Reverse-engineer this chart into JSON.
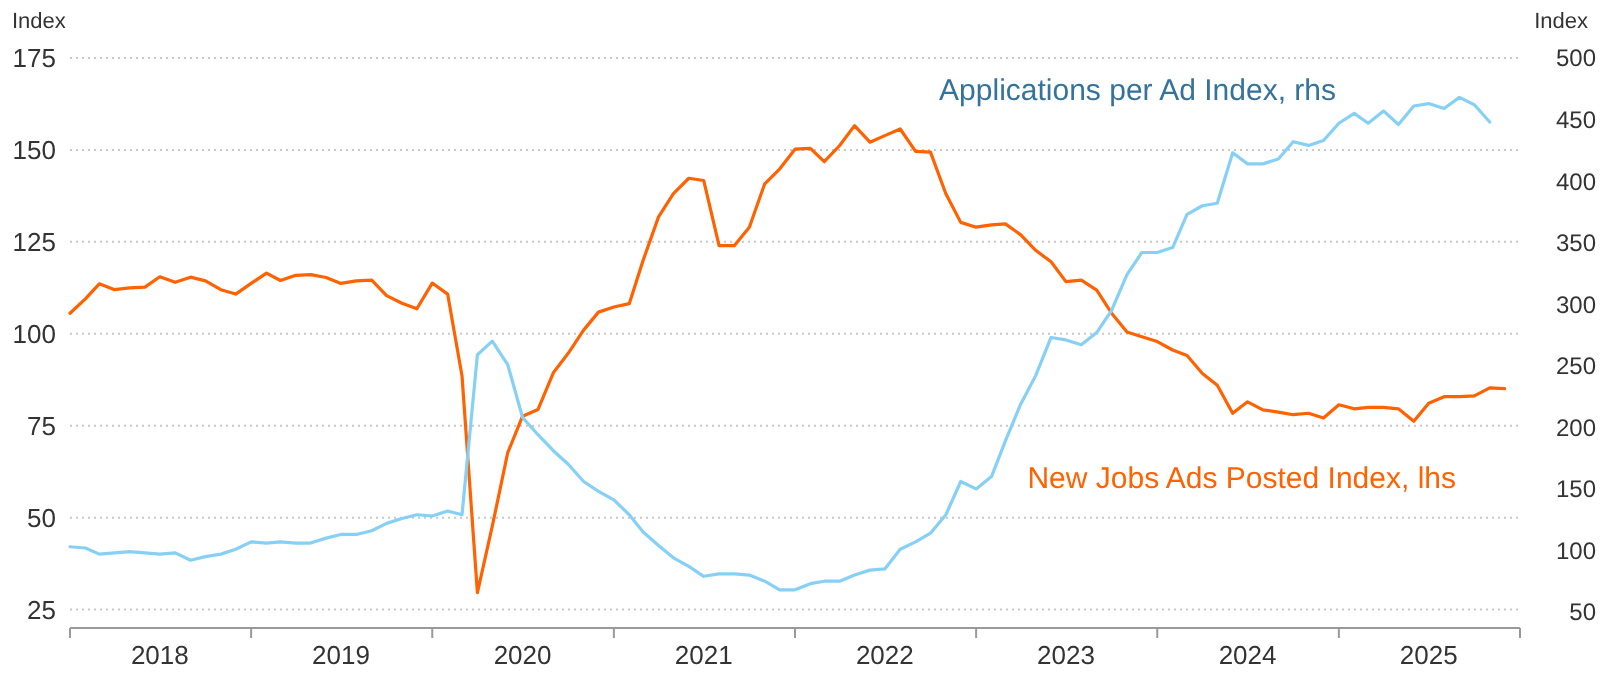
{
  "chart_data": {
    "type": "line",
    "ylabel": "Index",
    "y2label": "Index",
    "xlim": [
      "2018-01",
      "2026-01"
    ],
    "xticks": [
      {
        "value": "2018",
        "label": null
      },
      {
        "value": "2018-07",
        "label": "2018"
      },
      {
        "value": "2019",
        "label": null
      },
      {
        "value": "2019-07",
        "label": "2019"
      },
      {
        "value": "2020",
        "label": null
      },
      {
        "value": "2020-07",
        "label": "2020"
      },
      {
        "value": "2021",
        "label": null
      },
      {
        "value": "2021-07",
        "label": "2021"
      },
      {
        "value": "2022",
        "label": null
      },
      {
        "value": "2022-07",
        "label": "2022"
      },
      {
        "value": "2023",
        "label": null
      },
      {
        "value": "2023-07",
        "label": "2023"
      },
      {
        "value": "2024",
        "label": null
      },
      {
        "value": "2024-07",
        "label": "2024"
      },
      {
        "value": "2025",
        "label": null
      },
      {
        "value": "2025-07",
        "label": "2025"
      },
      {
        "value": "2026",
        "label": null
      }
    ],
    "ylim": [
      20,
      175
    ],
    "yticks": [
      25,
      50,
      75,
      100,
      125,
      150,
      175
    ],
    "y2lim": [
      37,
      500
    ],
    "y2ticks": [
      50,
      100,
      150,
      200,
      250,
      300,
      350,
      400,
      450,
      500
    ],
    "grid": "y",
    "x": [
      "2018-01",
      "2018-02",
      "2018-03",
      "2018-04",
      "2018-05",
      "2018-06",
      "2018-07",
      "2018-08",
      "2018-09",
      "2018-10",
      "2018-11",
      "2018-12",
      "2019-01",
      "2019-02",
      "2019-03",
      "2019-04",
      "2019-05",
      "2019-06",
      "2019-07",
      "2019-08",
      "2019-09",
      "2019-10",
      "2019-11",
      "2019-12",
      "2020-01",
      "2020-02",
      "2020-03",
      "2020-04",
      "2020-05",
      "2020-06",
      "2020-07",
      "2020-08",
      "2020-09",
      "2020-10",
      "2020-11",
      "2020-12",
      "2021-01",
      "2021-02",
      "2021-03",
      "2021-04",
      "2021-05",
      "2021-06",
      "2021-07",
      "2021-08",
      "2021-09",
      "2021-10",
      "2021-11",
      "2021-12",
      "2022-01",
      "2022-02",
      "2022-03",
      "2022-04",
      "2022-05",
      "2022-06",
      "2022-07",
      "2022-08",
      "2022-09",
      "2022-10",
      "2022-11",
      "2022-12",
      "2023-01",
      "2023-02",
      "2023-03",
      "2023-04",
      "2023-05",
      "2023-06",
      "2023-07",
      "2023-08",
      "2023-09",
      "2023-10",
      "2023-11",
      "2023-12",
      "2024-01",
      "2024-02",
      "2024-03",
      "2024-04",
      "2024-05",
      "2024-06",
      "2024-07",
      "2024-08",
      "2024-09",
      "2024-10",
      "2024-11",
      "2024-12",
      "2025-01",
      "2025-02",
      "2025-03",
      "2025-04",
      "2025-05",
      "2025-06",
      "2025-07",
      "2025-08",
      "2025-09",
      "2025-10",
      "2025-11",
      "2025-12"
    ],
    "series": [
      {
        "name": "New Jobs Ads Posted Index, lhs",
        "color": "#ff6200",
        "values": [
          105.6,
          109.5,
          113.6,
          112,
          112.5,
          112.7,
          115.5,
          114,
          115.4,
          114.4,
          112,
          110.8,
          113.7,
          116.5,
          114.5,
          115.9,
          116.1,
          115.3,
          113.7,
          114.4,
          114.6,
          110.4,
          108.3,
          106.8,
          113.8,
          110.8,
          88.5,
          29.6,
          47.7,
          67.6,
          77.6,
          79.4,
          89.4,
          94.7,
          101,
          105.9,
          107.3,
          108.2,
          120,
          131.8,
          138.1,
          142.3,
          141.7,
          124,
          124,
          129,
          140.8,
          144.8,
          150.2,
          150.4,
          146.8,
          151.2,
          156.6,
          152.1,
          153.9,
          155.7,
          149.6,
          149.4,
          138.1,
          130.3,
          129,
          129.6,
          129.9,
          126.9,
          122.7,
          119.6,
          114.2,
          114.6,
          111.9,
          105.6,
          100.5,
          99.2,
          97.9,
          95.6,
          94.1,
          89.2,
          86,
          78.4,
          81.5,
          79.3,
          78.7,
          78,
          78.4,
          77.1,
          80.7,
          79.6,
          80,
          80,
          79.6,
          76.2,
          81.1,
          82.9,
          82.9,
          83.1,
          85.3,
          85.1
        ]
      },
      {
        "name": "Applications per Ad Index, rhs",
        "color": "#87d0f5",
        "axis": "y2",
        "values": [
          103,
          102,
          97,
          98,
          99,
          98,
          97,
          98,
          92,
          95,
          97,
          101,
          107,
          106,
          107,
          106,
          106,
          110,
          113,
          113,
          116,
          122,
          126,
          129,
          128,
          132,
          129,
          259,
          270,
          251,
          208,
          194,
          181,
          170,
          156,
          148,
          141,
          129,
          115,
          104,
          94,
          87,
          79,
          81,
          81,
          80,
          75,
          68,
          68,
          73,
          75,
          75,
          80,
          84,
          85,
          101,
          107,
          114,
          129,
          156,
          150,
          160,
          189,
          219,
          242,
          273,
          271,
          267,
          277,
          295,
          324,
          342,
          342,
          346,
          373,
          380,
          382,
          423,
          414,
          414,
          418,
          432,
          429,
          433,
          447,
          455,
          447,
          457,
          446,
          461,
          463,
          459,
          468,
          462,
          448,
          null
        ]
      }
    ]
  }
}
